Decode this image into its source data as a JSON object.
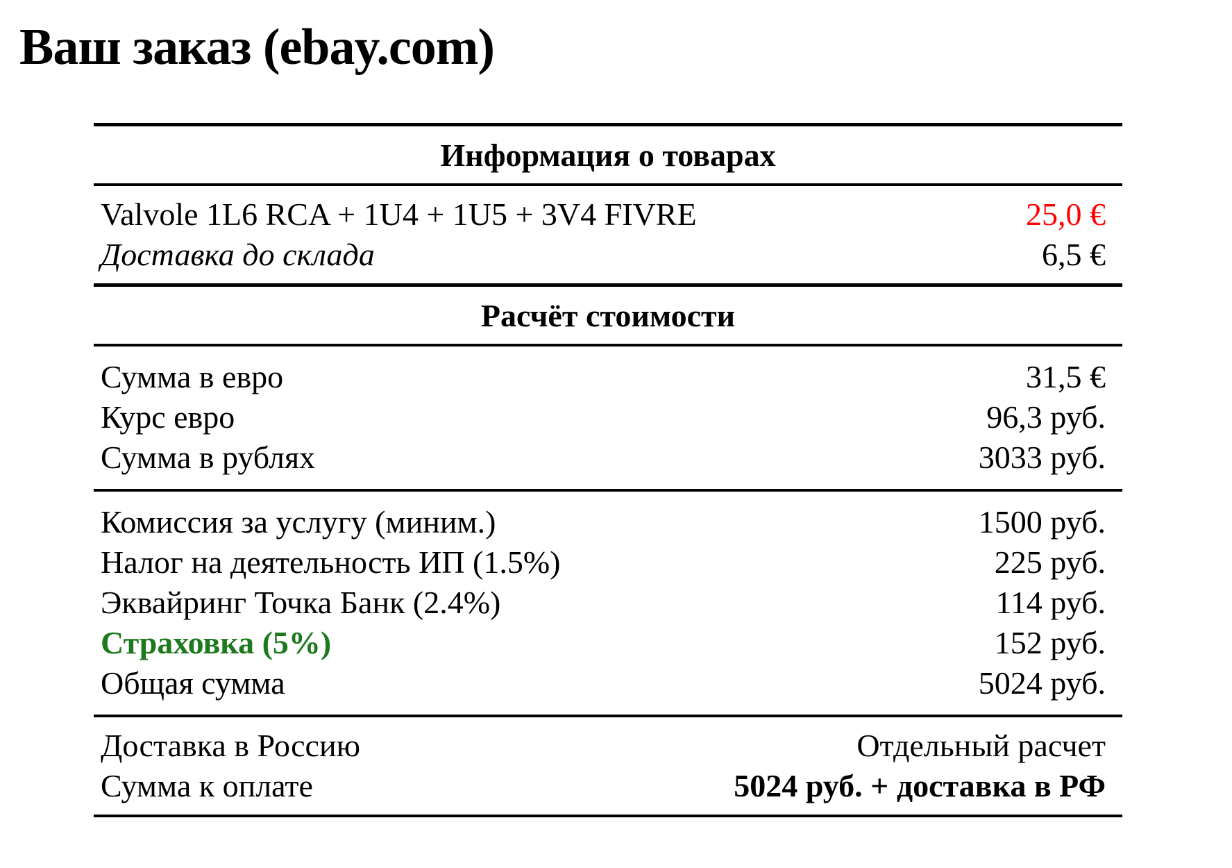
{
  "page": {
    "title": "Ваш заказ (ebay.com)"
  },
  "info": {
    "header": "Информация о товарах",
    "rows": [
      {
        "label": "Valvole 1L6 RCA + 1U4 + 1U5 + 3V4 FIVRE",
        "value": "25,0 €"
      },
      {
        "label": "Доставка до склада",
        "value": "6,5 €"
      }
    ]
  },
  "calc": {
    "header": "Расчёт стоимости",
    "group1": [
      {
        "label": "Сумма в евро",
        "value": "31,5 €"
      },
      {
        "label": "Курс евро",
        "value": "96,3 руб."
      },
      {
        "label": "Сумма в рублях",
        "value": "3033 руб."
      }
    ],
    "group2": [
      {
        "label": "Комиссия за услугу (миним.)",
        "value": "1500 руб."
      },
      {
        "label": "Налог на деятельность ИП (1.5%)",
        "value": "225 руб."
      },
      {
        "label": "Эквайринг Точка Банк (2.4%)",
        "value": "114 руб."
      },
      {
        "label": "Страховка (5%)",
        "value": "152 руб."
      },
      {
        "label": "Общая сумма",
        "value": "5024 руб."
      }
    ],
    "group3": [
      {
        "label": "Доставка в Россию",
        "value": "Отдельный расчет"
      },
      {
        "label": "Сумма к оплате",
        "value": "5024 руб. + доставка в РФ"
      }
    ]
  },
  "colors": {
    "price_highlight_red": "#ff0000",
    "insurance_green": "#1c7a1c",
    "text": "#000000",
    "background": "#ffffff"
  }
}
